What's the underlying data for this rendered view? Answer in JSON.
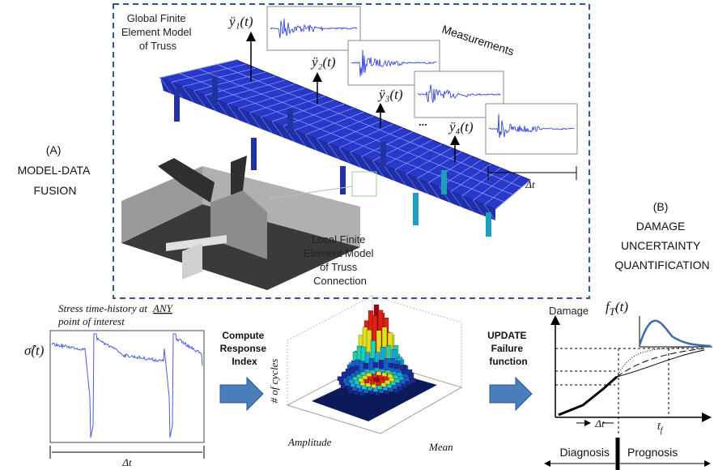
{
  "panel_a": {
    "label": "(A)",
    "title_lines": [
      "MODEL-DATA",
      "FUSION"
    ]
  },
  "global_model": {
    "lines": [
      "Global Finite",
      "Element Model",
      "of Truss"
    ]
  },
  "measurements": {
    "title": "Measurements",
    "signals": [
      "ÿ₁(t)",
      "ÿ₂(t)",
      "ÿ₃(t)",
      "ÿ₄(t)"
    ],
    "ellipsis": "...",
    "duration": "Δt"
  },
  "local_model": {
    "lines": [
      "Local Finite",
      "Element Model",
      "of Truss",
      "Connection"
    ]
  },
  "panel_b": {
    "label": "(B)",
    "title_lines": [
      "DAMAGE",
      "UNCERTAINTY",
      "QUANTIFICATION"
    ]
  },
  "stress": {
    "caption_line1": "Stress time-history at",
    "caption_emphasis": "ANY",
    "caption_line2": "point of interest",
    "y_label": "σ̂(t)",
    "duration": "Δt"
  },
  "step1": {
    "lines": [
      "Compute",
      "Response",
      "Index"
    ]
  },
  "histogram": {
    "z_label": "# of cycles",
    "x_label": "Amplitude",
    "y_label": "Mean"
  },
  "step2": {
    "lines": [
      "UPDATE",
      "Failure",
      "function"
    ]
  },
  "damage": {
    "y_label": "Damage",
    "pdf_label": [
      "f",
      "T",
      "(t)"
    ],
    "interval": "Δt",
    "failure_time": [
      "t̄",
      "f"
    ]
  },
  "timeline": {
    "past": "Diagnosis",
    "future": "Prognosis"
  }
}
